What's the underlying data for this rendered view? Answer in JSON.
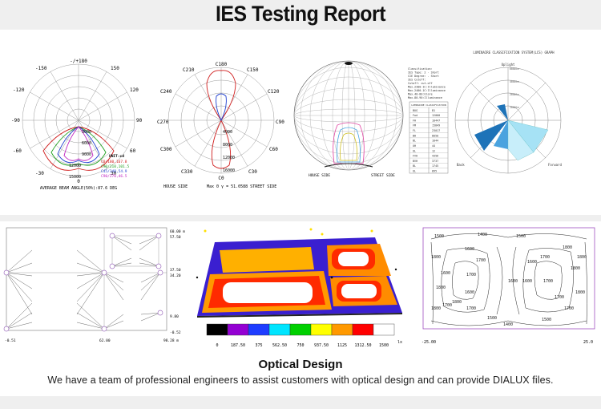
{
  "page": {
    "title": "IES Testing Report",
    "caption_title": "Optical Design",
    "caption_text": "We have a team of professional engineers to assist customers with optical design and can provide DIALUX files."
  },
  "polar1": {
    "angle_labels": [
      "-/+180",
      "150",
      "-150",
      "120",
      "-120",
      "90",
      "-90",
      "60",
      "-60",
      "30",
      "-30",
      "0"
    ],
    "values": [
      "3000",
      "6000",
      "9000",
      "12000",
      "15000"
    ],
    "legend_title": "UNIT:cd",
    "legend": [
      "C0/180,167.8",
      "C90/210,101.5",
      "C45/348,54.9",
      "C90/270,46.5"
    ],
    "footer": "AVERAGE BEAM ANGLE(50%):87.6 DEG"
  },
  "polar2": {
    "angle_labels": [
      "C180",
      "C210",
      "C150",
      "C240",
      "C120",
      "C270",
      "C90",
      "C300",
      "C60",
      "C330",
      "C30",
      "C0"
    ],
    "values": [
      "4000",
      "8000",
      "12000",
      "16000"
    ],
    "footer_left": "HOUSE SIDE",
    "footer_right": "Max 0 γ = 51.0588 STREET SIDE"
  },
  "isolux": {
    "footer_left": "HOUSE SIDE",
    "footer_right": "STREET SIDE"
  },
  "ies_table": {
    "lines": [
      "Classification:",
      "IES Type: 2 - Short",
      "CIE Degree: - Short",
      "IES Cutoff:",
      "Cutoff: cut-off",
      "Max.2300-1C:Illuminance",
      "Max.2400-1C:Illuminance",
      "Max.40-80:Glare",
      "Max.80-90:Illuminance"
    ],
    "header": "LUMINAIRE CLASSIFICATION",
    "rows": [
      [
        "BUG",
        "B1"
      ],
      [
        "Fwd",
        "12000"
      ],
      [
        "FH",
        "10447"
      ],
      [
        "FM",
        "15849"
      ],
      [
        "FL",
        "23017"
      ],
      [
        "BH",
        "8050"
      ],
      [
        "BL",
        "1044"
      ],
      [
        "UH",
        "44"
      ],
      [
        "UL",
        "12"
      ],
      [
        "FVH",
        "4356"
      ],
      [
        "BVH",
        "3737"
      ],
      [
        "BL",
        "1745"
      ],
      [
        "UL",
        "895"
      ]
    ]
  },
  "bug": {
    "title": "LUMINAIRE CLASSIFICATION SYSTEM(LCS) GRAPH",
    "uplight": "Uplight",
    "back": "Back",
    "forward": "Forward",
    "rings": [
      "6000lm",
      "4000lm",
      "2000lm",
      "1000lm"
    ]
  },
  "layout": {
    "y_labels": [
      "60.00 m",
      "57.50",
      "37.50",
      "34.20",
      "9.80",
      "-0.52"
    ],
    "x_labels": [
      "-0.51",
      "62.00",
      "98.28 m"
    ]
  },
  "heatmap": {
    "scale": [
      "0",
      "187.50",
      "375",
      "562.50",
      "750",
      "937.50",
      "1125",
      "1312.50",
      "1500"
    ],
    "unit": "lx",
    "colors": [
      "#000000",
      "#9400d3",
      "#1e3cff",
      "#00e5ff",
      "#00d000",
      "#ffff00",
      "#ff9900",
      "#ff0000",
      "#ffffff"
    ]
  },
  "contour": {
    "labels": [
      "1500",
      "1400",
      "1500",
      "1600",
      "1700",
      "1800",
      "1600",
      "1700",
      "1800",
      "1800",
      "1600",
      "1700",
      "1800",
      "1700",
      "1500",
      "1400",
      "1500",
      "1600",
      "1700",
      "1800",
      "1600",
      "1700",
      "1800",
      "1700",
      "1800",
      "1700",
      "1600",
      "1800"
    ],
    "x_left": "-25.00",
    "x_right": "25.0"
  }
}
